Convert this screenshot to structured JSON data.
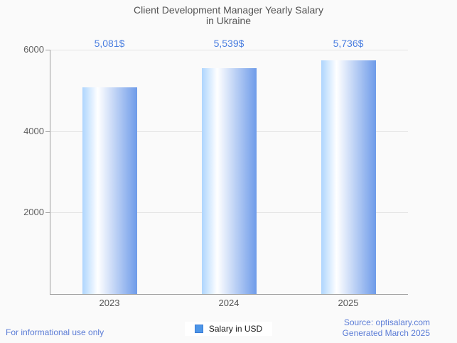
{
  "chart_data": {
    "type": "bar",
    "title": "Client Development Manager Yearly Salary in Ukraine",
    "title_lines": [
      "Client Development Manager Yearly Salary",
      "in Ukraine"
    ],
    "categories": [
      "2023",
      "2024",
      "2025"
    ],
    "series": [
      {
        "name": "Salary in USD",
        "values": [
          5081,
          5539,
          5736
        ],
        "labels": [
          "5,081$",
          "5,539$",
          "5,736$"
        ]
      }
    ],
    "xlabel": "",
    "ylabel": "",
    "ylim": [
      0,
      6000
    ],
    "y_ticks": [
      6000,
      4000,
      2000
    ],
    "grid": true,
    "legend_position": "bottom",
    "bar_gradient": [
      "#aed5fe",
      "#ffffff",
      "#6e9be9"
    ],
    "value_label_color": "#4a7ee0",
    "axis_color": "#9e9e9e",
    "grid_color": "#e3e3e3"
  },
  "legend": {
    "label": "Salary in USD",
    "swatch_fill": "#4d96e8",
    "swatch_border": "#3a7bd5"
  },
  "footer": {
    "left": "For informational use only",
    "source": "Source: optisalary.com",
    "generated": "Generated March 2025",
    "link_color": "#5b7cd6"
  }
}
